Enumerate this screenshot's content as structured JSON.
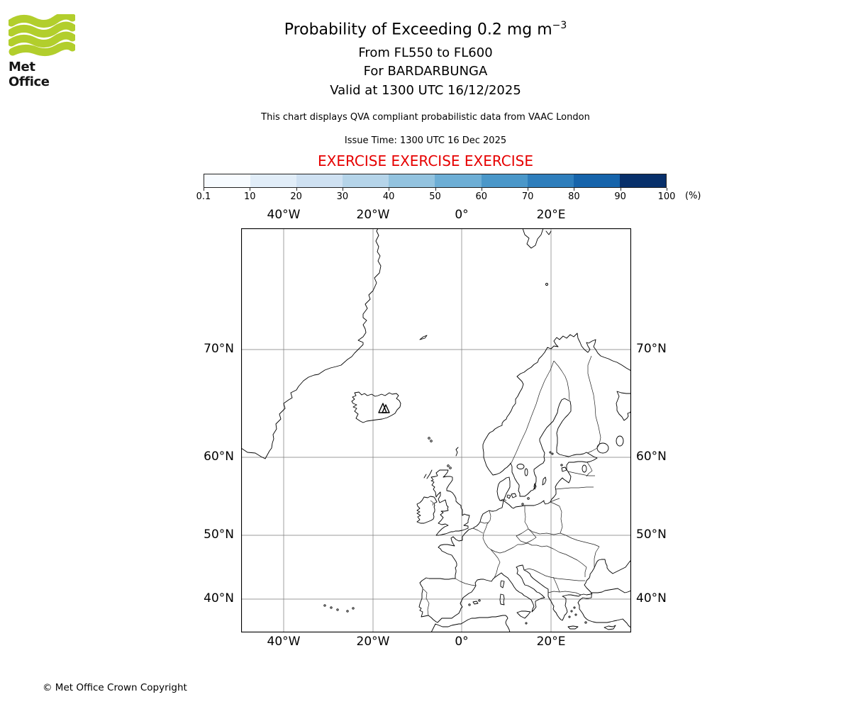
{
  "logo": {
    "brand": "Met Office"
  },
  "header": {
    "title": "Probability of Exceeding 0.2 mg m",
    "title_superscript": "−3",
    "subtitle_flight_levels": "From FL550 to FL600",
    "subtitle_volcano": "For BARDARBUNGA",
    "subtitle_valid": "Valid at 1300 UTC 16/12/2025",
    "description": "This chart displays QVA compliant probabilistic data from VAAC London",
    "issue_time": "Issue Time: 1300 UTC 16 Dec 2025",
    "exercise": "EXERCISE EXERCISE EXERCISE",
    "exercise_color": "#e60000"
  },
  "colorbar": {
    "ticks": [
      "0.1",
      "10",
      "20",
      "30",
      "40",
      "50",
      "60",
      "70",
      "80",
      "90",
      "100"
    ],
    "unit": "(%)",
    "colors": [
      "#f7fbff",
      "#e1edf8",
      "#cfe1f2",
      "#b5d4e9",
      "#93c3df",
      "#6daed5",
      "#4a97c9",
      "#2e7ebc",
      "#1664ab",
      "#08306b"
    ]
  },
  "map": {
    "lon_labels": [
      "40°W",
      "20°W",
      "0°",
      "20°E"
    ],
    "lat_labels": [
      "70°N",
      "60°N",
      "50°N",
      "40°N"
    ]
  },
  "footer": {
    "copyright": "© Met Office Crown Copyright"
  }
}
